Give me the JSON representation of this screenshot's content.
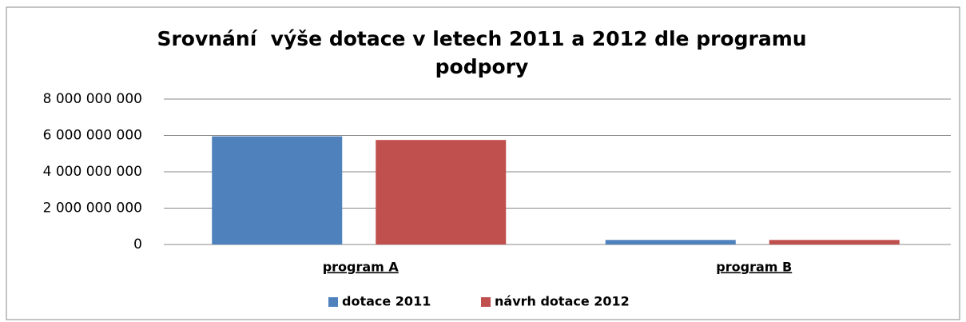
{
  "chart_data": {
    "type": "bar",
    "title": [
      "Srovnání  výše dotace v letech 2011 a 2012 dle programu",
      "podpory"
    ],
    "categories": [
      "program A",
      "program B"
    ],
    "series": [
      {
        "name": "dotace 2011",
        "color": "#4f81bd",
        "values": [
          5950000000,
          250000000
        ]
      },
      {
        "name": "návrh dotace 2012",
        "color": "#c0504d",
        "values": [
          5750000000,
          250000000
        ]
      }
    ],
    "ylim": [
      0,
      8000000000
    ],
    "yticks": [
      0,
      {
        "value": 2000000000,
        "label": "2 000 000 000"
      },
      {
        "value": 4000000000,
        "label": "4 000 000 000"
      },
      {
        "value": 6000000000,
        "label": "6 000 000 000"
      },
      {
        "value": 8000000000,
        "label": "8 000 000 000"
      }
    ],
    "grid": true,
    "legend": "bottom"
  }
}
